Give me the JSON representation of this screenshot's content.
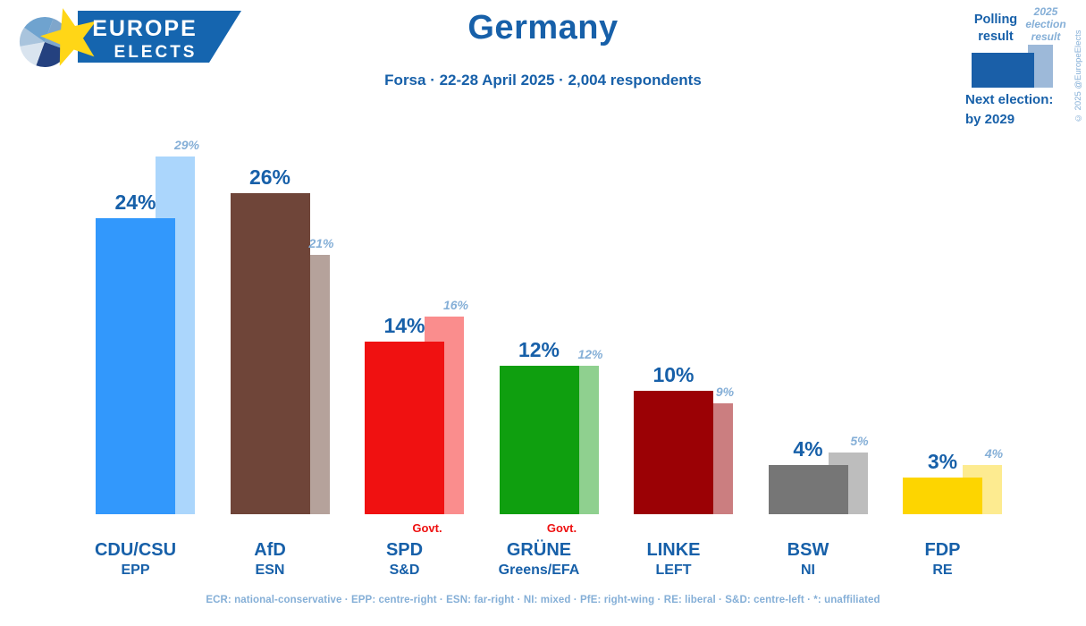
{
  "colors": {
    "primary_blue": "#1760a9",
    "light_blue": "#85afd7",
    "govt_red": "#ee1111",
    "logo_banner_blue": "#1565af",
    "logo_star_yellow": "#ffd617"
  },
  "header": {
    "logo_line1": "EUROPE",
    "logo_line2": "ELECTS",
    "title": "Germany",
    "subtitle": "Forsa · 22-28 April 2025 · 2,004 respondents",
    "copyright": "© 2025 @EuropeElects"
  },
  "legend": {
    "polling_label": "Polling result",
    "election_label": "2025 election result",
    "next_election_label": "Next election:",
    "next_election_value": "by 2029",
    "polling_color": "#1a5fa8",
    "election_color": "#9db9d9"
  },
  "chart_data": {
    "type": "bar",
    "title": "Germany",
    "subtitle": "Forsa · 22-28 April 2025 · 2,004 respondents",
    "unit": "%",
    "ylim": [
      0,
      30
    ],
    "grid": false,
    "series_names": [
      "Polling result",
      "2025 election result"
    ],
    "govt_label": "Govt.",
    "parties": [
      {
        "name": "CDU/CSU",
        "group": "EPP",
        "polling": 24,
        "election_2025": 29,
        "govt": false,
        "color": "#3298fc",
        "election_color": "#abd6fc"
      },
      {
        "name": "AfD",
        "group": "ESN",
        "polling": 26,
        "election_2025": 21,
        "govt": false,
        "color": "#6f4539",
        "election_color": "#b5a29b"
      },
      {
        "name": "SPD",
        "group": "S&D",
        "polling": 14,
        "election_2025": 16,
        "govt": true,
        "color": "#f01111",
        "election_color": "#fa8d8d"
      },
      {
        "name": "GRÜNE",
        "group": "Greens/EFA",
        "polling": 12,
        "election_2025": 12,
        "govt": true,
        "color": "#0f9f0f",
        "election_color": "#8fd08f"
      },
      {
        "name": "LINKE",
        "group": "LEFT",
        "polling": 10,
        "election_2025": 9,
        "govt": false,
        "color": "#9b0105",
        "election_color": "#cb7e80"
      },
      {
        "name": "BSW",
        "group": "NI",
        "polling": 4,
        "election_2025": 5,
        "govt": false,
        "color": "#767676",
        "election_color": "#bdbdbd"
      },
      {
        "name": "FDP",
        "group": "RE",
        "polling": 3,
        "election_2025": 4,
        "govt": false,
        "color": "#fdd500",
        "election_color": "#fdeb90"
      }
    ]
  },
  "footer": {
    "legend_line": "ECR: national-conservative · EPP: centre-right · ESN: far-right · NI: mixed · PfE: right-wing · RE: liberal · S&D: centre-left · *: unaffiliated"
  }
}
